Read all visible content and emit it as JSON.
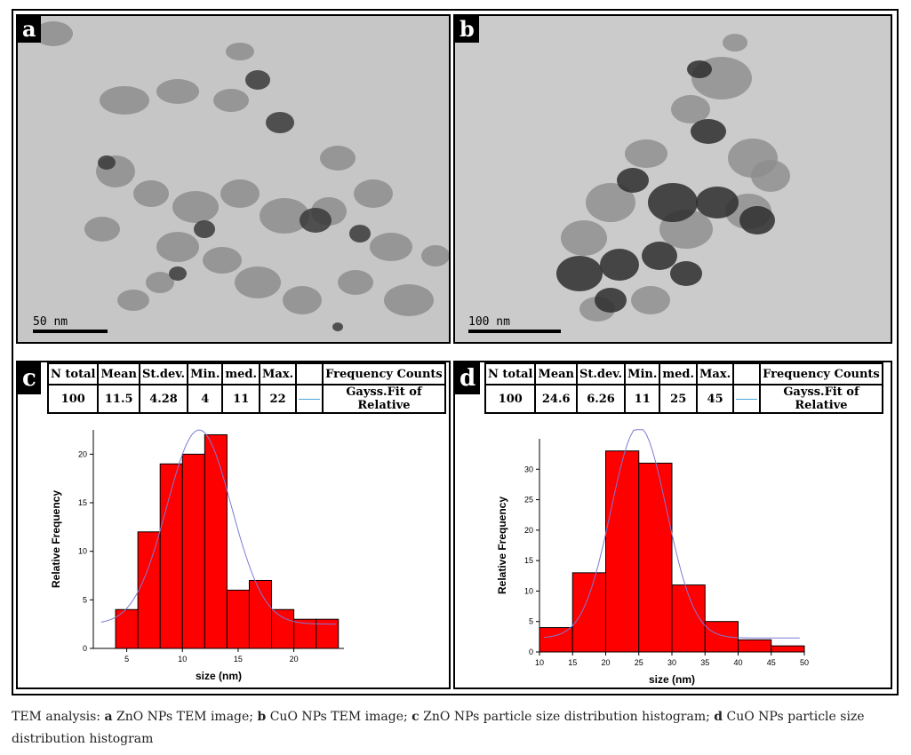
{
  "caption": {
    "prefix": "TEM analysis:",
    "items": [
      {
        "letter": "a",
        "text": "ZnO NPs TEM image;"
      },
      {
        "letter": "b",
        "text": "CuO NPs TEM image;"
      },
      {
        "letter": "c",
        "text": "ZnO NPs particle size distribution histogram;"
      },
      {
        "letter": "d",
        "text": "CuO NPs particle size distribution histogram"
      }
    ]
  },
  "tem_panels": [
    {
      "letter": "a",
      "scale_label": "50 nm"
    },
    {
      "letter": "b",
      "scale_label": "100 nm"
    }
  ],
  "stats_headers": [
    "N total",
    "Mean",
    "St.dev.",
    "Min.",
    "med.",
    "Max.",
    "",
    "Frequency Counts"
  ],
  "fit_label": "Gayss.Fit of Relative",
  "colors": {
    "bar": "#ff0000",
    "fit_curve": "#7b7bd6",
    "legend_line": "#4da6d8",
    "tem_background": "#c9c9c9"
  },
  "chart_data": [
    {
      "panel": "c",
      "type": "bar",
      "stats": {
        "n_total": "100",
        "mean": "11.5",
        "stdev": "4.28",
        "min": "4",
        "med": "11",
        "max": "22"
      },
      "xlabel": "size (nm)",
      "ylabel": "Relative Frequency",
      "xlim": [
        2,
        24.5
      ],
      "ylim": [
        0,
        22.5
      ],
      "xticks": [
        5,
        10,
        15,
        20
      ],
      "yticks": [
        0,
        5,
        10,
        15,
        20
      ],
      "bin_width": 2,
      "bins": [
        5,
        7,
        9,
        11,
        13,
        15,
        17,
        19,
        21,
        23
      ],
      "values": [
        4,
        12,
        19,
        20,
        22,
        6,
        7,
        4,
        3,
        3
      ],
      "fit": {
        "type": "gauss",
        "mean": 11.5,
        "sd": 2.9,
        "peak": 22.5,
        "baseline": 2.5
      }
    },
    {
      "panel": "d",
      "type": "bar",
      "stats": {
        "n_total": "100",
        "mean": "24.6",
        "stdev": "6.26",
        "min": "11",
        "med": "25",
        "max": "45"
      },
      "xlabel": "size (nm)",
      "ylabel": "Relative Frequency",
      "xlim": [
        10,
        50
      ],
      "ylim": [
        0,
        35
      ],
      "xticks": [
        10,
        15,
        20,
        25,
        30,
        35,
        40,
        45,
        50
      ],
      "yticks": [
        0,
        5,
        10,
        15,
        20,
        25,
        30
      ],
      "bin_width": 5,
      "bins": [
        12.5,
        17.5,
        22.5,
        27.5,
        32.5,
        37.5,
        42.5,
        47.5
      ],
      "values": [
        4,
        13,
        33,
        31,
        11,
        5,
        2,
        1
      ],
      "fit": {
        "type": "gauss",
        "mean": 25,
        "sd": 4.2,
        "peak": 37,
        "baseline": 2.3
      }
    }
  ]
}
